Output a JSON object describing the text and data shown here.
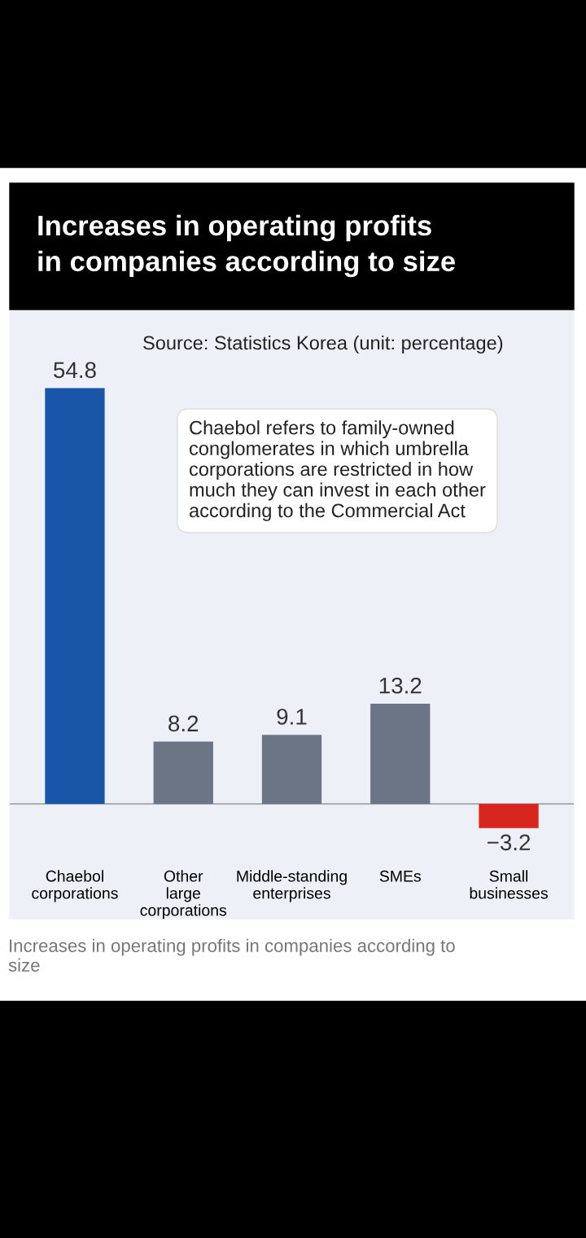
{
  "chart_data": {
    "type": "bar",
    "title": "Increases in operating profits\nin companies according to size",
    "subtitle": "Source: Statistics Korea (unit: percentage)",
    "categories": [
      "Chaebol\ncorporations",
      "Other\nlarge\ncorporations",
      "Middle-standing\nenterprises",
      "SMEs",
      "Small\nbusinesses"
    ],
    "values": [
      54.8,
      8.2,
      9.1,
      13.2,
      -3.2
    ],
    "colors": [
      "#1a56a8",
      "#6b7585",
      "#6b7585",
      "#6b7585",
      "#d7261e"
    ],
    "data_labels": true,
    "annotations": [
      "Chaebol refers to family-owned\nconglomerates in which umbrella\ncorporations are restricted in how\nmuch they can invest in each other\naccording to the Commercial Act",
      "Increases in operating profits in companies according to\nsize"
    ]
  }
}
